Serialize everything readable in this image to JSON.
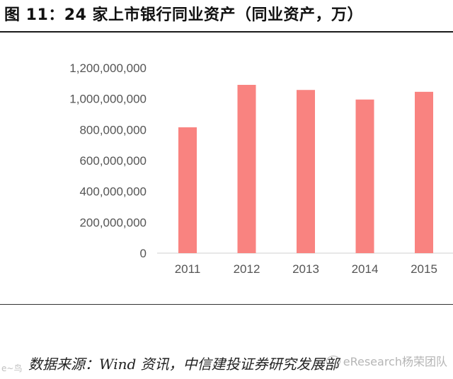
{
  "figure": {
    "title": "图 11：24 家上市银行同业资产（同业资产，万）",
    "source": "数据来源：Wind 资讯，中信建投证券研究发展部",
    "watermark": "eResearch杨荣团队",
    "watermark_left": "e~鸟"
  },
  "chart_data": {
    "type": "bar",
    "title": "",
    "xlabel": "",
    "ylabel": "",
    "categories": [
      "2011",
      "2012",
      "2013",
      "2014",
      "2015"
    ],
    "values": [
      815000000,
      1090000000,
      1057000000,
      995000000,
      1045000000
    ],
    "ylim": [
      0,
      1200000000
    ],
    "yticks": [
      0,
      200000000,
      400000000,
      600000000,
      800000000,
      1000000000,
      1200000000
    ],
    "ytick_labels": [
      "0",
      "200,000,000",
      "400,000,000",
      "600,000,000",
      "800,000,000",
      "1,000,000,000",
      "1,200,000,000"
    ],
    "bar_color": "#f98380",
    "axis_color": "#cfcfcf",
    "grid": false,
    "legend": "none"
  }
}
